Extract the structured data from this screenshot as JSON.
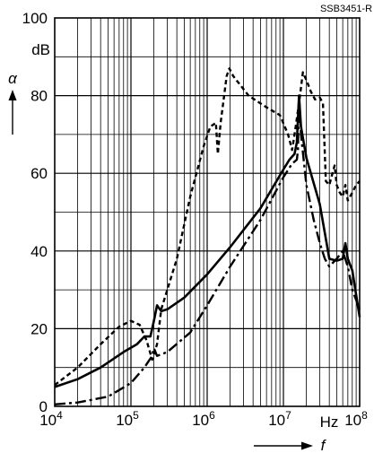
{
  "chart_data": {
    "type": "line",
    "code": "SSB3451-R",
    "ylabel_symbol": "α",
    "yunit": "dB",
    "xlabel_symbol": "f",
    "xunit": "Hz",
    "xscale": "log",
    "xlim": [
      10000,
      100000000
    ],
    "ylim": [
      0,
      100
    ],
    "yticks": [
      0,
      20,
      40,
      60,
      80,
      100
    ],
    "xticks": [
      {
        "base": "10",
        "exp": "4"
      },
      {
        "base": "10",
        "exp": "5"
      },
      {
        "base": "10",
        "exp": "6"
      },
      {
        "base": "10",
        "exp": "7"
      },
      {
        "base": "10",
        "exp": "8"
      }
    ],
    "grid": true,
    "series": [
      {
        "style": "dashed",
        "points": [
          [
            10000,
            5.5
          ],
          [
            20000,
            10
          ],
          [
            40000,
            16
          ],
          [
            70000,
            20.5
          ],
          [
            100000,
            22
          ],
          [
            130000,
            21
          ],
          [
            160000,
            17
          ],
          [
            190000,
            12
          ],
          [
            220000,
            16
          ],
          [
            250000,
            25
          ],
          [
            400000,
            38
          ],
          [
            600000,
            54
          ],
          [
            900000,
            67
          ],
          [
            1100000,
            72
          ],
          [
            1300000,
            73
          ],
          [
            1380000,
            65
          ],
          [
            1500000,
            73
          ],
          [
            1800000,
            85
          ],
          [
            1950000,
            87
          ],
          [
            2200000,
            85
          ],
          [
            3500000,
            80
          ],
          [
            6000000,
            77
          ],
          [
            9000000,
            75
          ],
          [
            11500000,
            70
          ],
          [
            13000000,
            66
          ],
          [
            14500000,
            72
          ],
          [
            16500000,
            80
          ],
          [
            18000000,
            86
          ],
          [
            20000000,
            84
          ],
          [
            23000000,
            81
          ],
          [
            26000000,
            79
          ],
          [
            30000000,
            79.5
          ],
          [
            33000000,
            78
          ],
          [
            36000000,
            58
          ],
          [
            40000000,
            57
          ],
          [
            44000000,
            60
          ],
          [
            47000000,
            62
          ],
          [
            50000000,
            57
          ],
          [
            55000000,
            55
          ],
          [
            60000000,
            54
          ],
          [
            65000000,
            57
          ],
          [
            70000000,
            53
          ],
          [
            80000000,
            55
          ],
          [
            90000000,
            57
          ],
          [
            100000000,
            58
          ]
        ]
      },
      {
        "style": "solid",
        "points": [
          [
            10000,
            5
          ],
          [
            20000,
            7
          ],
          [
            40000,
            10
          ],
          [
            80000,
            14
          ],
          [
            120000,
            16
          ],
          [
            150000,
            18
          ],
          [
            180000,
            18
          ],
          [
            200000,
            22
          ],
          [
            220000,
            26
          ],
          [
            250000,
            24.5
          ],
          [
            300000,
            25
          ],
          [
            500000,
            28
          ],
          [
            1000000,
            34
          ],
          [
            2000000,
            41
          ],
          [
            5000000,
            51
          ],
          [
            10000000,
            61
          ],
          [
            12000000,
            63.5
          ],
          [
            14000000,
            65
          ],
          [
            15000000,
            68
          ],
          [
            16000000,
            80
          ],
          [
            17000000,
            72
          ],
          [
            20000000,
            64
          ],
          [
            30000000,
            52
          ],
          [
            40000000,
            38
          ],
          [
            50000000,
            37.5
          ],
          [
            60000000,
            38
          ],
          [
            65000000,
            42
          ],
          [
            70000000,
            38
          ],
          [
            80000000,
            35
          ],
          [
            100000000,
            23
          ]
        ]
      },
      {
        "style": "dashdot",
        "points": [
          [
            10000,
            0.5
          ],
          [
            20000,
            1
          ],
          [
            50000,
            2.5
          ],
          [
            100000,
            6
          ],
          [
            150000,
            10
          ],
          [
            190000,
            13
          ],
          [
            200000,
            15
          ],
          [
            220000,
            13
          ],
          [
            300000,
            14
          ],
          [
            600000,
            19
          ],
          [
            1000000,
            26
          ],
          [
            2000000,
            36
          ],
          [
            5000000,
            48
          ],
          [
            10000000,
            59
          ],
          [
            13000000,
            62.5
          ],
          [
            15000000,
            63.5
          ],
          [
            15500000,
            66
          ],
          [
            16000000,
            80
          ],
          [
            17000000,
            70
          ],
          [
            20000000,
            57
          ],
          [
            25000000,
            48
          ],
          [
            30000000,
            42
          ],
          [
            35000000,
            38
          ],
          [
            40000000,
            36
          ],
          [
            50000000,
            38
          ],
          [
            60000000,
            40
          ],
          [
            70000000,
            36
          ],
          [
            80000000,
            30
          ],
          [
            100000000,
            25
          ]
        ]
      }
    ]
  }
}
